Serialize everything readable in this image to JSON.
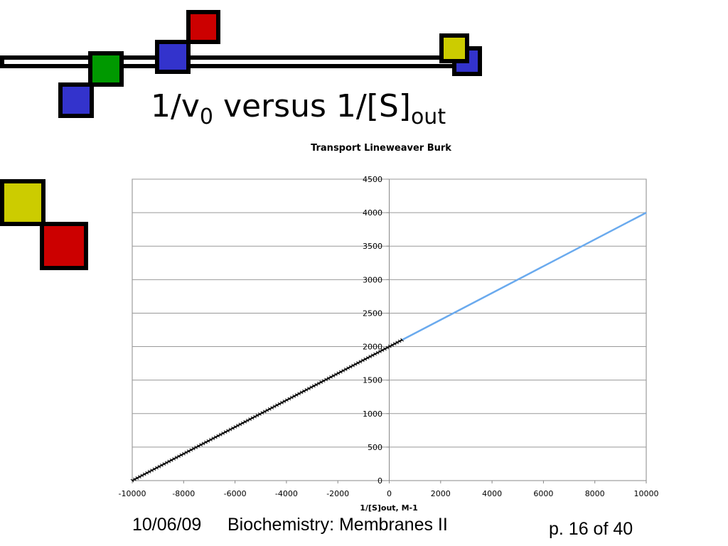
{
  "slide": {
    "title_main": "1/v",
    "title_sub": "0",
    "title_rest": " versus 1/[S]",
    "title_sub2": "out"
  },
  "footer": {
    "date": "10/06/09",
    "course": "Biochemistry: Membranes II",
    "page": "p. 16 of 40"
  },
  "colors": {
    "blue_square": "#3333cc",
    "red_square": "#cc0000",
    "green_square": "#009900",
    "yellow_square": "#cccc00",
    "data_line": "#000000",
    "extrapolation_line": "#6aaaee"
  },
  "chart_data": {
    "type": "line",
    "title": "Transport Lineweaver Burk",
    "xlabel": "1/[S]out, M-1",
    "ylabel": "",
    "xlim": [
      -10000,
      10000
    ],
    "ylim": [
      0,
      4500
    ],
    "x_ticks": [
      "-10000",
      "-8000",
      "-6000",
      "-4000",
      "-2000",
      "0",
      "2000",
      "4000",
      "6000",
      "8000",
      "10000"
    ],
    "y_ticks": [
      "0",
      "500",
      "1000",
      "1500",
      "2000",
      "2500",
      "3000",
      "3500",
      "4000",
      "4500"
    ],
    "grid": "horizontal",
    "legend": "none",
    "series": [
      {
        "x": [
          -10000,
          500
        ],
        "y": [
          0,
          2100
        ],
        "style": "black line with dense markers"
      },
      {
        "x": [
          500,
          10000
        ],
        "y": [
          2100,
          4000
        ],
        "style": "light blue line"
      }
    ]
  }
}
